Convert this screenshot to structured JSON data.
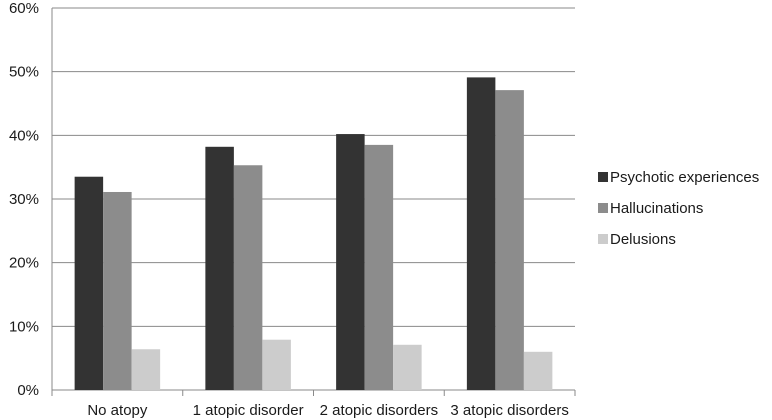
{
  "chart_data": {
    "type": "bar",
    "categories": [
      "No atopy",
      "1 atopic disorder",
      "2 atopic disorders",
      "3 atopic disorders"
    ],
    "series": [
      {
        "name": "Psychotic experiences",
        "values": [
          33.5,
          38.2,
          40.2,
          49.1
        ],
        "color": "#333333"
      },
      {
        "name": "Hallucinations",
        "values": [
          31.1,
          35.3,
          38.5,
          47.1
        ],
        "color": "#8c8c8c"
      },
      {
        "name": "Delusions",
        "values": [
          6.4,
          7.9,
          7.1,
          6.0
        ],
        "color": "#cccccc"
      }
    ],
    "y_ticks": [
      0,
      10,
      20,
      30,
      40,
      50,
      60
    ],
    "y_tick_labels": [
      "0%",
      "10%",
      "20%",
      "30%",
      "40%",
      "50%",
      "60%"
    ],
    "ylim": [
      0,
      60
    ],
    "grid": true,
    "legend_position": "right"
  }
}
